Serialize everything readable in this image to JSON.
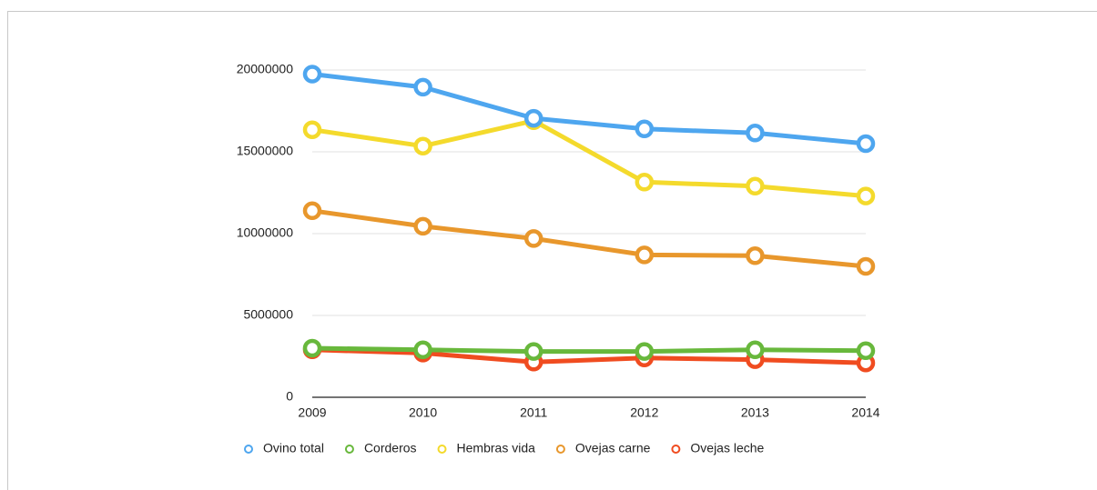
{
  "chart_data": {
    "type": "line",
    "x": [
      "2009",
      "2010",
      "2011",
      "2012",
      "2013",
      "2014"
    ],
    "series": [
      {
        "name": "Ovino total",
        "color": "#4ea6ef",
        "values": [
          19750000,
          18950000,
          17050000,
          16400000,
          16150000,
          15500000
        ]
      },
      {
        "name": "Corderos",
        "color": "#68b83c",
        "values": [
          3000000,
          2900000,
          2800000,
          2800000,
          2900000,
          2850000
        ]
      },
      {
        "name": "Hembras vida",
        "color": "#f4da2c",
        "values": [
          16350000,
          15350000,
          16900000,
          13150000,
          12900000,
          12300000
        ]
      },
      {
        "name": "Ovejas carne",
        "color": "#e8972c",
        "values": [
          11400000,
          10450000,
          9700000,
          8700000,
          8650000,
          8000000
        ]
      },
      {
        "name": "Ovejas leche",
        "color": "#f04c20",
        "values": [
          2900000,
          2700000,
          2150000,
          2400000,
          2300000,
          2100000
        ]
      }
    ],
    "ylim": [
      0,
      20000000
    ],
    "yticks": [
      0,
      5000000,
      10000000,
      15000000,
      20000000
    ],
    "grid": true,
    "legend": "bottom"
  }
}
